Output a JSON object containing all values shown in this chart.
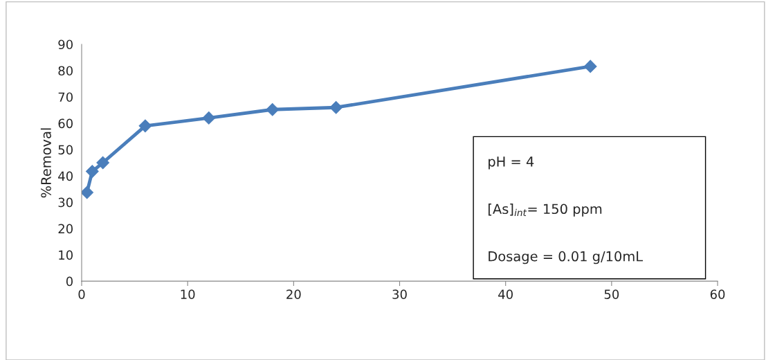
{
  "chart_data": {
    "type": "line",
    "ylabel": "%Removal",
    "x": [
      0.5,
      1,
      2,
      6,
      12,
      18,
      24,
      48
    ],
    "series": [
      {
        "color": "#4a7ebb",
        "values": [
          33.7,
          41.7,
          45,
          59,
          62,
          65.2,
          66,
          81.6
        ]
      }
    ],
    "xlim": [
      0,
      60
    ],
    "xticks": [
      0,
      10,
      20,
      30,
      40,
      50,
      60
    ],
    "ylim": [
      0,
      90
    ],
    "yticks": [
      0,
      10,
      20,
      30,
      40,
      50,
      60,
      70,
      80,
      90
    ],
    "grid": false,
    "legend": false,
    "marker": "diamond",
    "line_style": "solid",
    "annotations": [
      "pH = 4",
      "[As]$_{int}$= 150 ppm",
      "Dosage = 0.01 g/10mL"
    ]
  }
}
